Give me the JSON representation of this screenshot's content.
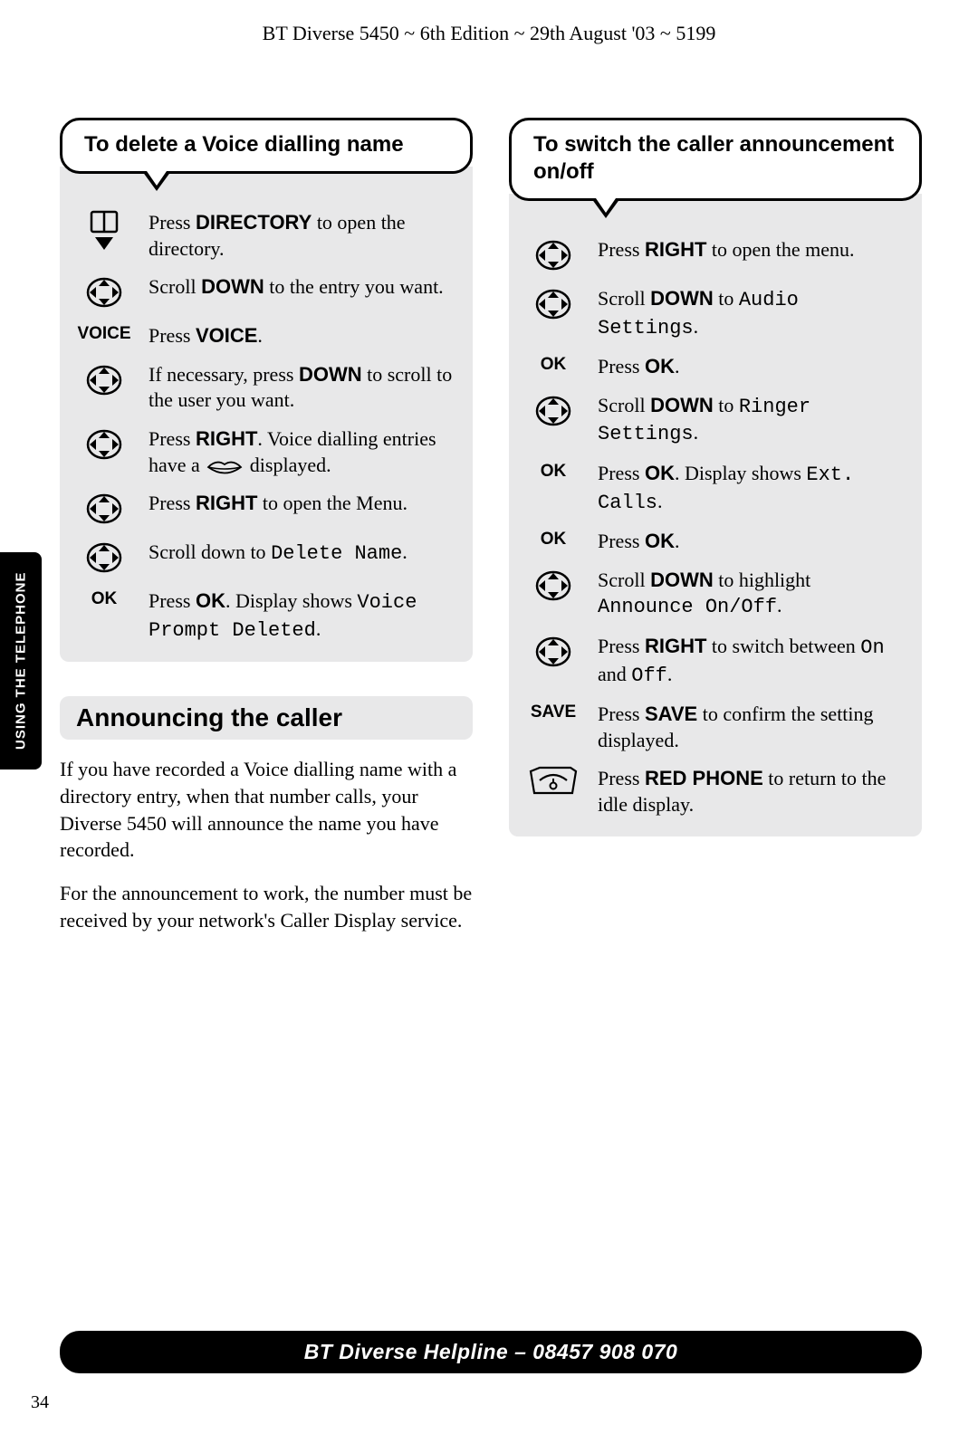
{
  "header": "BT Diverse 5450 ~ 6th Edition ~ 29th August '03 ~ 5199",
  "side_tab": "USING THE TELEPHONE",
  "page_number": "34",
  "footer": "BT Diverse Helpline – 08457 908 070",
  "left": {
    "panel_title": "To delete a Voice dialling name",
    "steps": [
      {
        "icon": "directory",
        "html": "Press <b>DIRECTORY</b> to open the directory."
      },
      {
        "icon": "nav",
        "html": "Scroll <b>DOWN</b> to the entry you want."
      },
      {
        "icon": "voice",
        "html": "Press <b>VOICE</b>."
      },
      {
        "icon": "nav",
        "html": "If necessary, press <b>DOWN</b> to scroll to the user you want."
      },
      {
        "icon": "nav",
        "html": "Press <b>RIGHT</b>. Voice dialling entries have a {{lips}} displayed."
      },
      {
        "icon": "nav",
        "html": "Press <b>RIGHT</b> to open the Menu."
      },
      {
        "icon": "nav",
        "html": "Scroll down to <span class='lcd'>Delete Name</span>."
      },
      {
        "icon": "ok",
        "html": "Press <b>OK</b>. Display shows <span class='lcd'>Voice Prompt Deleted</span>."
      }
    ],
    "section_heading": "Announcing the caller",
    "para1": "If you have recorded a Voice dialling name with a directory entry, when that number calls, your Diverse 5450 will announce the name you have recorded.",
    "para2": "For the announcement to work, the number must be received by your network's Caller Display service."
  },
  "right": {
    "panel_title": "To switch the caller announcement on/off",
    "steps": [
      {
        "icon": "nav",
        "html": "Press <b>RIGHT</b> to open the menu."
      },
      {
        "icon": "nav",
        "html": "Scroll <b>DOWN</b> to <span class='lcd'>Audio Settings</span>."
      },
      {
        "icon": "ok",
        "html": "Press <b>OK</b>."
      },
      {
        "icon": "nav",
        "html": "Scroll <b>DOWN</b> to <span class='lcd'>Ringer Settings</span>."
      },
      {
        "icon": "ok",
        "html": "Press <b>OK</b>. Display shows <span class='lcd'>Ext. Calls</span>."
      },
      {
        "icon": "ok",
        "html": "Press <b>OK</b>."
      },
      {
        "icon": "nav",
        "html": "Scroll <b>DOWN</b> to highlight <span class='lcd'>Announce On/Off</span>."
      },
      {
        "icon": "nav",
        "html": "Press <b>RIGHT</b> to switch between <span class='lcd'>On</span> and <span class='lcd'>Off</span>."
      },
      {
        "icon": "save",
        "html": "Press <b>SAVE</b> to confirm the setting displayed."
      },
      {
        "icon": "phone",
        "html": "Press <b>RED PHONE</b> to return to the idle display."
      }
    ]
  },
  "icons": {
    "nav_svg_size": 40,
    "colors": {
      "stroke": "#000000",
      "fill_bg": "#ffffff"
    }
  }
}
